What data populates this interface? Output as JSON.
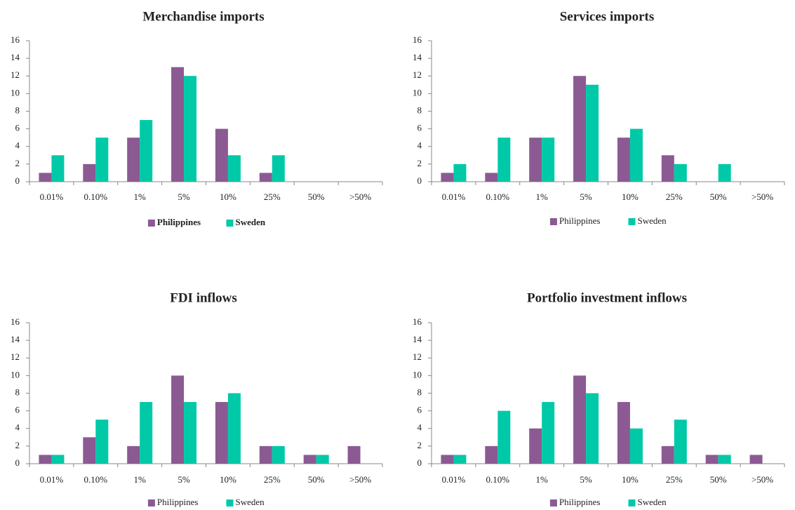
{
  "chart_data": [
    {
      "type": "bar",
      "title": "Merchandise imports",
      "categories": [
        "0.01%",
        "0.10%",
        "1%",
        "5%",
        "10%",
        "25%",
        "50%",
        ">50%"
      ],
      "series": [
        {
          "name": "Philippines",
          "color": "#8b5a93",
          "values": [
            1,
            2,
            5,
            13,
            6,
            1,
            0,
            0
          ]
        },
        {
          "name": "Sweden",
          "color": "#00c9a7",
          "values": [
            3,
            5,
            7,
            12,
            3,
            3,
            0,
            0
          ]
        }
      ],
      "ylim": [
        0,
        16
      ],
      "yticks": [
        0,
        2,
        4,
        6,
        8,
        10,
        12,
        14,
        16
      ],
      "legend": "bottom"
    },
    {
      "type": "bar",
      "title": "Services imports",
      "categories": [
        "0.01%",
        "0.10%",
        "1%",
        "5%",
        "10%",
        "25%",
        "50%",
        ">50%"
      ],
      "series": [
        {
          "name": "Philippines",
          "color": "#8b5a93",
          "values": [
            1,
            1,
            5,
            12,
            5,
            3,
            0,
            0
          ]
        },
        {
          "name": "Sweden",
          "color": "#00c9a7",
          "values": [
            2,
            5,
            5,
            11,
            6,
            2,
            2,
            0
          ]
        }
      ],
      "ylim": [
        0,
        16
      ],
      "yticks": [
        0,
        2,
        4,
        6,
        8,
        10,
        12,
        14,
        16
      ],
      "legend": "bottom"
    },
    {
      "type": "bar",
      "title": "FDI inflows",
      "categories": [
        "0.01%",
        "0.10%",
        "1%",
        "5%",
        "10%",
        "25%",
        "50%",
        ">50%"
      ],
      "series": [
        {
          "name": "Philippines",
          "color": "#8b5a93",
          "values": [
            1,
            3,
            2,
            10,
            7,
            2,
            1,
            2
          ]
        },
        {
          "name": "Sweden",
          "color": "#00c9a7",
          "values": [
            1,
            5,
            7,
            7,
            8,
            2,
            1,
            0
          ]
        }
      ],
      "ylim": [
        0,
        16
      ],
      "yticks": [
        0,
        2,
        4,
        6,
        8,
        10,
        12,
        14,
        16
      ],
      "legend": "bottom"
    },
    {
      "type": "bar",
      "title": "Portfolio investment inflows",
      "categories": [
        "0.01%",
        "0.10%",
        "1%",
        "5%",
        "10%",
        "25%",
        "50%",
        ">50%"
      ],
      "series": [
        {
          "name": "Philippines",
          "color": "#8b5a93",
          "values": [
            1,
            2,
            4,
            10,
            7,
            2,
            1,
            1
          ]
        },
        {
          "name": "Sweden",
          "color": "#00c9a7",
          "values": [
            1,
            6,
            7,
            8,
            4,
            5,
            1,
            0
          ]
        }
      ],
      "ylim": [
        0,
        16
      ],
      "yticks": [
        0,
        2,
        4,
        6,
        8,
        10,
        12,
        14,
        16
      ],
      "legend": "bottom"
    }
  ]
}
